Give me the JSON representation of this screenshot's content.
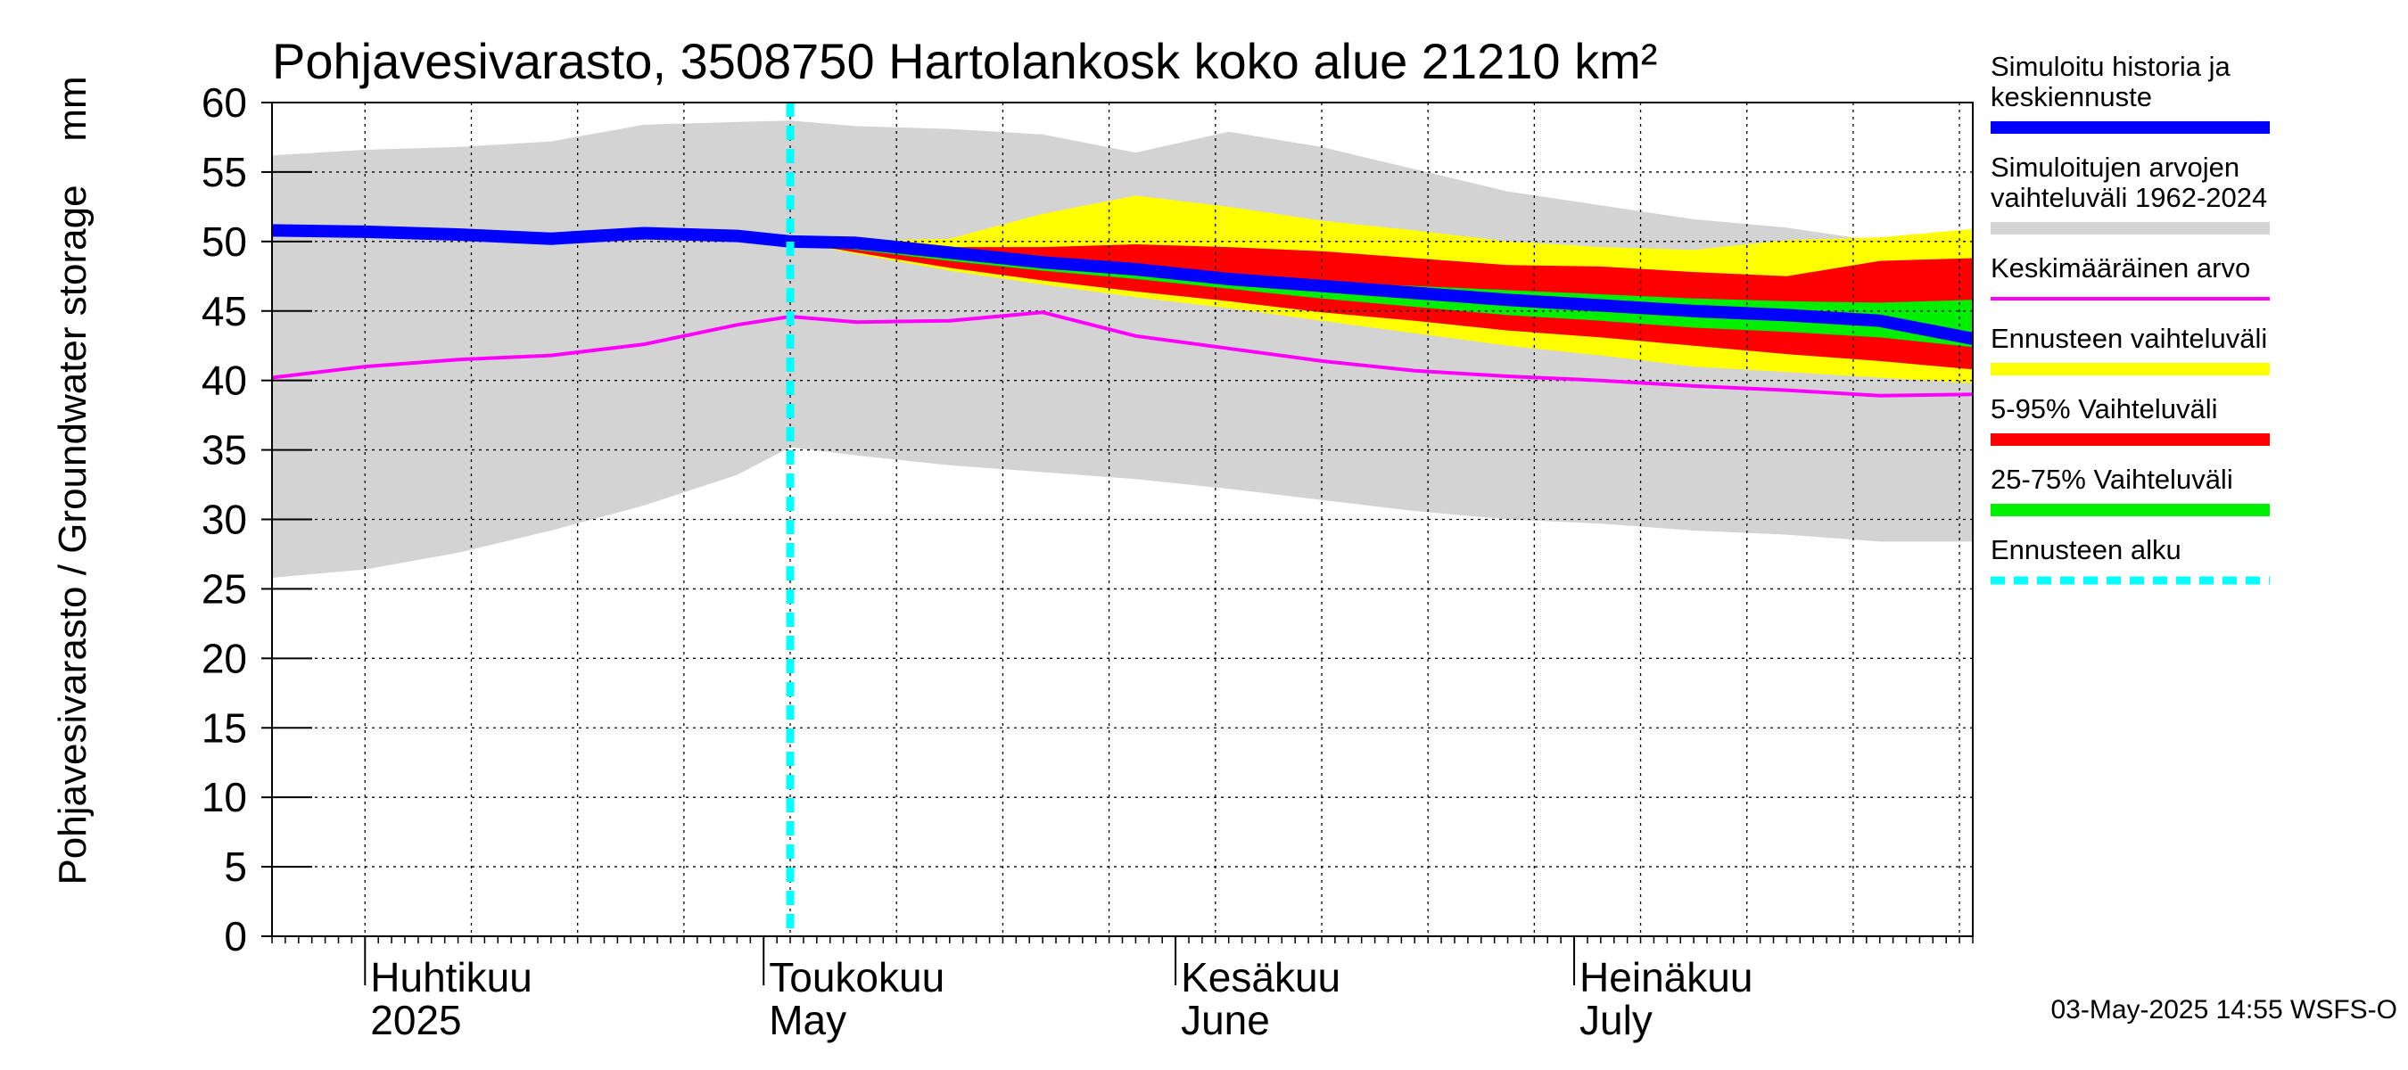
{
  "chart_data": {
    "type": "area",
    "title": "Pohjavesivarasto, 3508750 Hartolankosk koko alue 21210 km²",
    "ylabel": "Pohjavesivarasto / Groundwater storage",
    "yunit": "mm",
    "ylim": [
      0,
      60
    ],
    "yticks": [
      0,
      5,
      10,
      15,
      20,
      25,
      30,
      35,
      40,
      45,
      50,
      55,
      60
    ],
    "xlim": [
      "2025-03-25",
      "2025-07-31"
    ],
    "month_labels": [
      {
        "fi": "Huhtikuu",
        "en": "2025",
        "date": "2025-04-01"
      },
      {
        "fi": "Toukokuu",
        "en": "May",
        "date": "2025-05-01"
      },
      {
        "fi": "Kesäkuu",
        "en": "June",
        "date": "2025-06-01"
      },
      {
        "fi": "Heinäkuu",
        "en": "July",
        "date": "2025-07-01"
      }
    ],
    "grid": true,
    "forecast_start": "2025-05-03",
    "footer": "03-May-2025 14:55 WSFS-O",
    "legend_position": "right",
    "colors": {
      "history": "#0000ff",
      "hist_range": "#d3d3d3",
      "mean": "#ff00ff",
      "forecast_range": "#ffff00",
      "p5_95": "#ff0000",
      "p25_75": "#00ee00",
      "forecast_start": "#00ffff"
    },
    "legend": [
      {
        "key": "history",
        "lines": [
          "Simuloitu historia ja",
          "keskiennuste"
        ],
        "style": "line"
      },
      {
        "key": "hist_range",
        "lines": [
          "Simuloitujen arvojen",
          "vaihteluväli 1962-2024"
        ],
        "style": "line"
      },
      {
        "key": "mean",
        "lines": [
          "Keskimääräinen arvo"
        ],
        "style": "thin"
      },
      {
        "key": "forecast_range",
        "lines": [
          "Ennusteen vaihteluväli"
        ],
        "style": "line"
      },
      {
        "key": "p5_95",
        "lines": [
          "5-95% Vaihteluväli"
        ],
        "style": "line"
      },
      {
        "key": "p25_75",
        "lines": [
          "25-75% Vaihteluväli"
        ],
        "style": "line"
      },
      {
        "key": "forecast_start",
        "lines": [
          "Ennusteen alku"
        ],
        "style": "dash"
      }
    ],
    "series": {
      "hist_range": {
        "dates": [
          "2025-03-25",
          "2025-04-01",
          "2025-04-08",
          "2025-04-15",
          "2025-04-22",
          "2025-04-29",
          "2025-05-03",
          "2025-05-08",
          "2025-05-15",
          "2025-05-22",
          "2025-05-29",
          "2025-06-05",
          "2025-06-12",
          "2025-06-19",
          "2025-06-26",
          "2025-07-03",
          "2025-07-10",
          "2025-07-17",
          "2025-07-24",
          "2025-07-31"
        ],
        "upper": [
          56.2,
          56.6,
          56.8,
          57.2,
          58.4,
          58.6,
          58.7,
          58.3,
          58.1,
          57.7,
          56.4,
          57.9,
          56.8,
          55.2,
          53.6,
          52.6,
          51.6,
          51.0,
          50.0,
          50.8
        ],
        "lower": [
          25.8,
          26.4,
          27.6,
          29.2,
          31.0,
          33.2,
          35.2,
          34.6,
          33.9,
          33.4,
          32.9,
          32.2,
          31.4,
          30.6,
          30.0,
          29.7,
          29.2,
          28.9,
          28.4,
          28.4
        ]
      },
      "history": {
        "dates": [
          "2025-03-25",
          "2025-04-01",
          "2025-04-08",
          "2025-04-15",
          "2025-04-22",
          "2025-04-29",
          "2025-05-03",
          "2025-05-08",
          "2025-05-15",
          "2025-05-22",
          "2025-05-29",
          "2025-06-05",
          "2025-06-12",
          "2025-06-19",
          "2025-06-26",
          "2025-07-03",
          "2025-07-10",
          "2025-07-17",
          "2025-07-24",
          "2025-07-31"
        ],
        "values": [
          50.8,
          50.7,
          50.5,
          50.2,
          50.6,
          50.4,
          50.0,
          49.9,
          49.2,
          48.5,
          48.0,
          47.3,
          46.8,
          46.3,
          45.8,
          45.4,
          45.0,
          44.7,
          44.3,
          43.0
        ]
      },
      "mean": {
        "dates": [
          "2025-03-25",
          "2025-04-01",
          "2025-04-08",
          "2025-04-15",
          "2025-04-22",
          "2025-04-29",
          "2025-05-03",
          "2025-05-08",
          "2025-05-15",
          "2025-05-22",
          "2025-05-29",
          "2025-06-05",
          "2025-06-12",
          "2025-06-19",
          "2025-06-26",
          "2025-07-03",
          "2025-07-10",
          "2025-07-17",
          "2025-07-24",
          "2025-07-31"
        ],
        "values": [
          40.2,
          41.0,
          41.5,
          41.8,
          42.6,
          44.0,
          44.6,
          44.2,
          44.3,
          44.9,
          43.2,
          42.3,
          41.4,
          40.7,
          40.3,
          40.0,
          39.6,
          39.3,
          38.9,
          39.0
        ]
      },
      "forecast": {
        "dates": [
          "2025-05-03",
          "2025-05-08",
          "2025-05-15",
          "2025-05-22",
          "2025-05-29",
          "2025-06-05",
          "2025-06-12",
          "2025-06-19",
          "2025-06-26",
          "2025-07-03",
          "2025-07-10",
          "2025-07-17",
          "2025-07-24",
          "2025-07-31"
        ],
        "max": [
          50.0,
          50.0,
          50.2,
          52.0,
          53.3,
          52.5,
          51.5,
          50.8,
          50.0,
          49.6,
          49.4,
          50.1,
          50.3,
          50.9
        ],
        "p95": [
          50.0,
          49.9,
          49.6,
          49.6,
          49.8,
          49.6,
          49.3,
          48.8,
          48.3,
          48.2,
          47.8,
          47.5,
          48.6,
          48.8
        ],
        "p75": [
          50.0,
          49.7,
          49.1,
          48.6,
          48.2,
          47.6,
          47.1,
          46.8,
          46.5,
          46.2,
          45.9,
          45.7,
          45.6,
          45.8
        ],
        "p25": [
          50.0,
          49.4,
          48.6,
          47.9,
          47.3,
          46.6,
          45.9,
          45.3,
          44.7,
          44.3,
          43.8,
          43.5,
          43.1,
          42.4
        ],
        "p5": [
          50.0,
          49.2,
          48.1,
          47.2,
          46.4,
          45.7,
          44.9,
          44.3,
          43.6,
          43.1,
          42.5,
          41.9,
          41.4,
          40.8
        ],
        "min": [
          50.0,
          49.1,
          47.9,
          46.9,
          46.0,
          45.2,
          44.3,
          43.4,
          42.5,
          41.8,
          41.0,
          40.6,
          40.2,
          39.8
        ]
      }
    }
  }
}
